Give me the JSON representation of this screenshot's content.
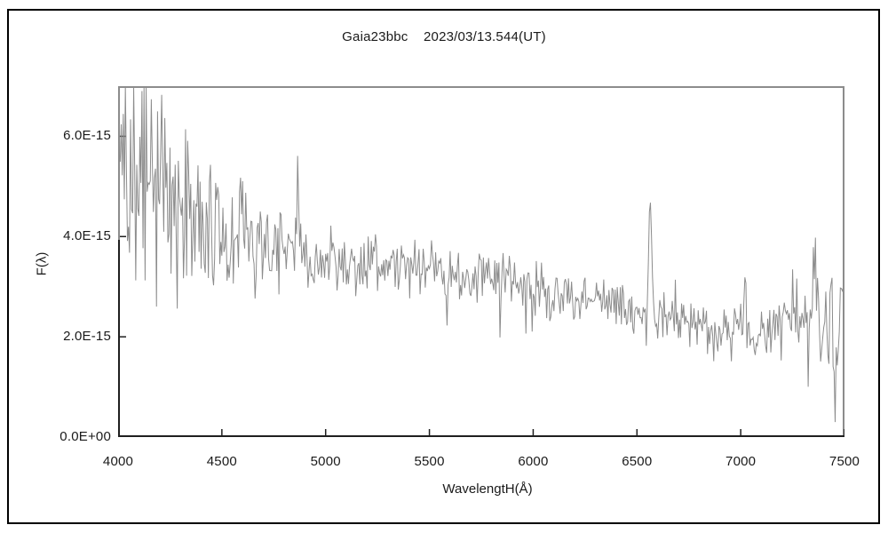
{
  "chart_data": {
    "type": "line",
    "title": "Gaia23bbc    2023/03/13.544(UT)",
    "xlabel": "WavelengtH(Å)",
    "ylabel": "F(λ)",
    "xlim": [
      4000,
      7500
    ],
    "ylim": [
      0,
      7e-15
    ],
    "flux_scale": 1e-15,
    "grid": false,
    "legend": "none",
    "x_ticks": [
      4000,
      4500,
      5000,
      5500,
      6000,
      6500,
      7000,
      7500
    ],
    "x_tick_labels": [
      "4000",
      "4500",
      "5000",
      "5500",
      "6000",
      "6500",
      "7000",
      "7500"
    ],
    "y_ticks": [
      0,
      2e-15,
      4e-15,
      6e-15
    ],
    "y_tick_labels": [
      "0.0E+00",
      "2.0E-15",
      "4.0E-15",
      "6.0E-15"
    ],
    "line_color": "#8c8c8c",
    "frame_color": "#8c8c8c",
    "axis_dark_color": "#1f1f1f",
    "clip": [
      0.3,
      7.0
    ],
    "continuum": [
      [
        4000,
        5.35,
        1.75
      ],
      [
        4060,
        5.3,
        1.75
      ],
      [
        4150,
        5.05,
        1.6
      ],
      [
        4250,
        4.75,
        1.45
      ],
      [
        4350,
        4.5,
        1.3
      ],
      [
        4450,
        4.35,
        1.2
      ],
      [
        4550,
        4.15,
        1.0
      ],
      [
        4650,
        3.92,
        0.85
      ],
      [
        4750,
        3.72,
        0.7
      ],
      [
        4850,
        3.62,
        0.6
      ],
      [
        4950,
        3.55,
        0.52
      ],
      [
        5100,
        3.5,
        0.45
      ],
      [
        5300,
        3.43,
        0.42
      ],
      [
        5500,
        3.36,
        0.4
      ],
      [
        5700,
        3.2,
        0.4
      ],
      [
        5900,
        3.05,
        0.4
      ],
      [
        6100,
        2.86,
        0.38
      ],
      [
        6300,
        2.66,
        0.36
      ],
      [
        6500,
        2.5,
        0.34
      ],
      [
        6700,
        2.35,
        0.36
      ],
      [
        6850,
        2.2,
        0.42
      ],
      [
        6950,
        2.05,
        0.45
      ],
      [
        7050,
        2.15,
        0.46
      ],
      [
        7200,
        2.32,
        0.52
      ],
      [
        7350,
        2.55,
        0.62
      ],
      [
        7440,
        2.3,
        0.7
      ],
      [
        7500,
        2.85,
        0.55
      ]
    ],
    "features": [
      {
        "center": 4861,
        "sigma": 6,
        "amp": 0.9
      },
      {
        "center": 5590,
        "sigma": 5,
        "amp": -0.85
      },
      {
        "center": 6563,
        "sigma": 7,
        "amp": 2.1
      },
      {
        "center": 6880,
        "sigma": 14,
        "amp": -0.55
      },
      {
        "center": 7020,
        "sigma": 5,
        "amp": 1.0
      },
      {
        "center": 7355,
        "sigma": 5,
        "amp": 1.1
      },
      {
        "center": 7455,
        "sigma": 6,
        "amp": -1.7
      }
    ],
    "noise": {
      "seed": 20230313,
      "step_angstrom": 5,
      "spread_factor": 1.6,
      "outlier_chance": 0.08,
      "outlier_factor": 1.9
    }
  }
}
